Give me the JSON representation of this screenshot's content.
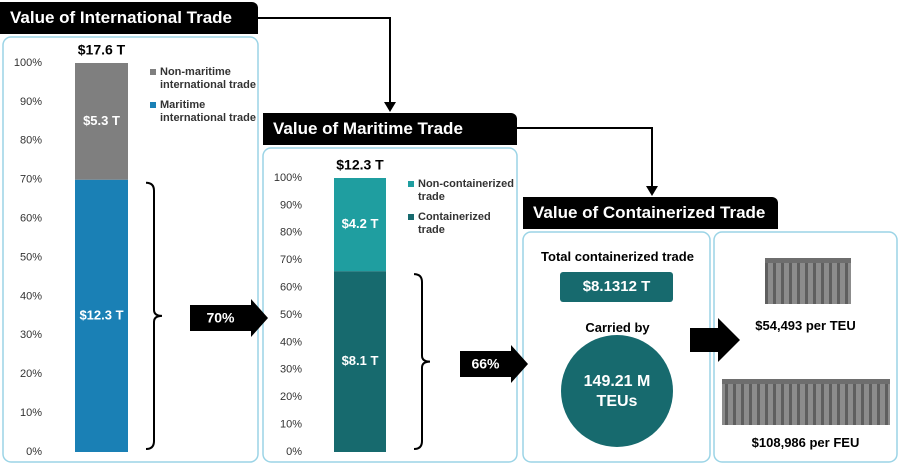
{
  "chart_data": [
    {
      "type": "bar",
      "stacked": true,
      "title": "Value of International Trade",
      "total": 17.6,
      "total_label": "$17.6 T",
      "series": [
        {
          "name": "Maritime international trade",
          "color": "#1a80b5",
          "values": [
            70
          ],
          "amounts": [
            12.3
          ],
          "amount_labels": [
            "$12.3 T"
          ]
        },
        {
          "name": "Non-maritime international trade",
          "color": "#7f7f7f",
          "values": [
            30
          ],
          "amounts": [
            5.3
          ],
          "amount_labels": [
            "$5.3 T"
          ]
        }
      ],
      "ylim": [
        0,
        100
      ],
      "yticks": [
        {
          "value": 0,
          "label": "0%"
        },
        {
          "value": 10,
          "label": "10%"
        },
        {
          "value": 20,
          "label": "20%"
        },
        {
          "value": 30,
          "label": "30%"
        },
        {
          "value": 40,
          "label": "40%"
        },
        {
          "value": 50,
          "label": "50%"
        },
        {
          "value": 60,
          "label": "60%"
        },
        {
          "value": 70,
          "label": "70%"
        },
        {
          "value": 80,
          "label": "80%"
        },
        {
          "value": 90,
          "label": "90%"
        },
        {
          "value": 100,
          "label": "100%"
        }
      ],
      "share": 70,
      "share_label": "70%"
    },
    {
      "type": "bar",
      "stacked": true,
      "title": "Value of Maritime Trade",
      "total": 12.3,
      "total_label": "$12.3 T",
      "series": [
        {
          "name": "Containerized trade",
          "color": "#176a6e",
          "values": [
            66
          ],
          "amounts": [
            8.1
          ],
          "amount_labels": [
            "$8.1 T"
          ]
        },
        {
          "name": "Non-containerized trade",
          "color": "#1f9ea0",
          "values": [
            34
          ],
          "amounts": [
            4.2
          ],
          "amount_labels": [
            "$4.2 T"
          ]
        }
      ],
      "ylim": [
        0,
        100
      ],
      "yticks": [
        {
          "value": 0,
          "label": "0%"
        },
        {
          "value": 10,
          "label": "10%"
        },
        {
          "value": 20,
          "label": "20%"
        },
        {
          "value": 30,
          "label": "30%"
        },
        {
          "value": 40,
          "label": "40%"
        },
        {
          "value": 50,
          "label": "50%"
        },
        {
          "value": 60,
          "label": "60%"
        },
        {
          "value": 70,
          "label": "70%"
        },
        {
          "value": 80,
          "label": "80%"
        },
        {
          "value": 90,
          "label": "90%"
        },
        {
          "value": 100,
          "label": "100%"
        }
      ],
      "share": 66,
      "share_label": "66%"
    }
  ],
  "containerized": {
    "title": "Value of Containerized Trade",
    "total_caption": "Total containerized trade",
    "total_value": "$8.1312 T",
    "carried_caption": "Carried by",
    "carried_value": "149.21 M TEUs",
    "per_teu": "$54,493 per TEU",
    "per_feu": "$108,986 per FEU"
  }
}
